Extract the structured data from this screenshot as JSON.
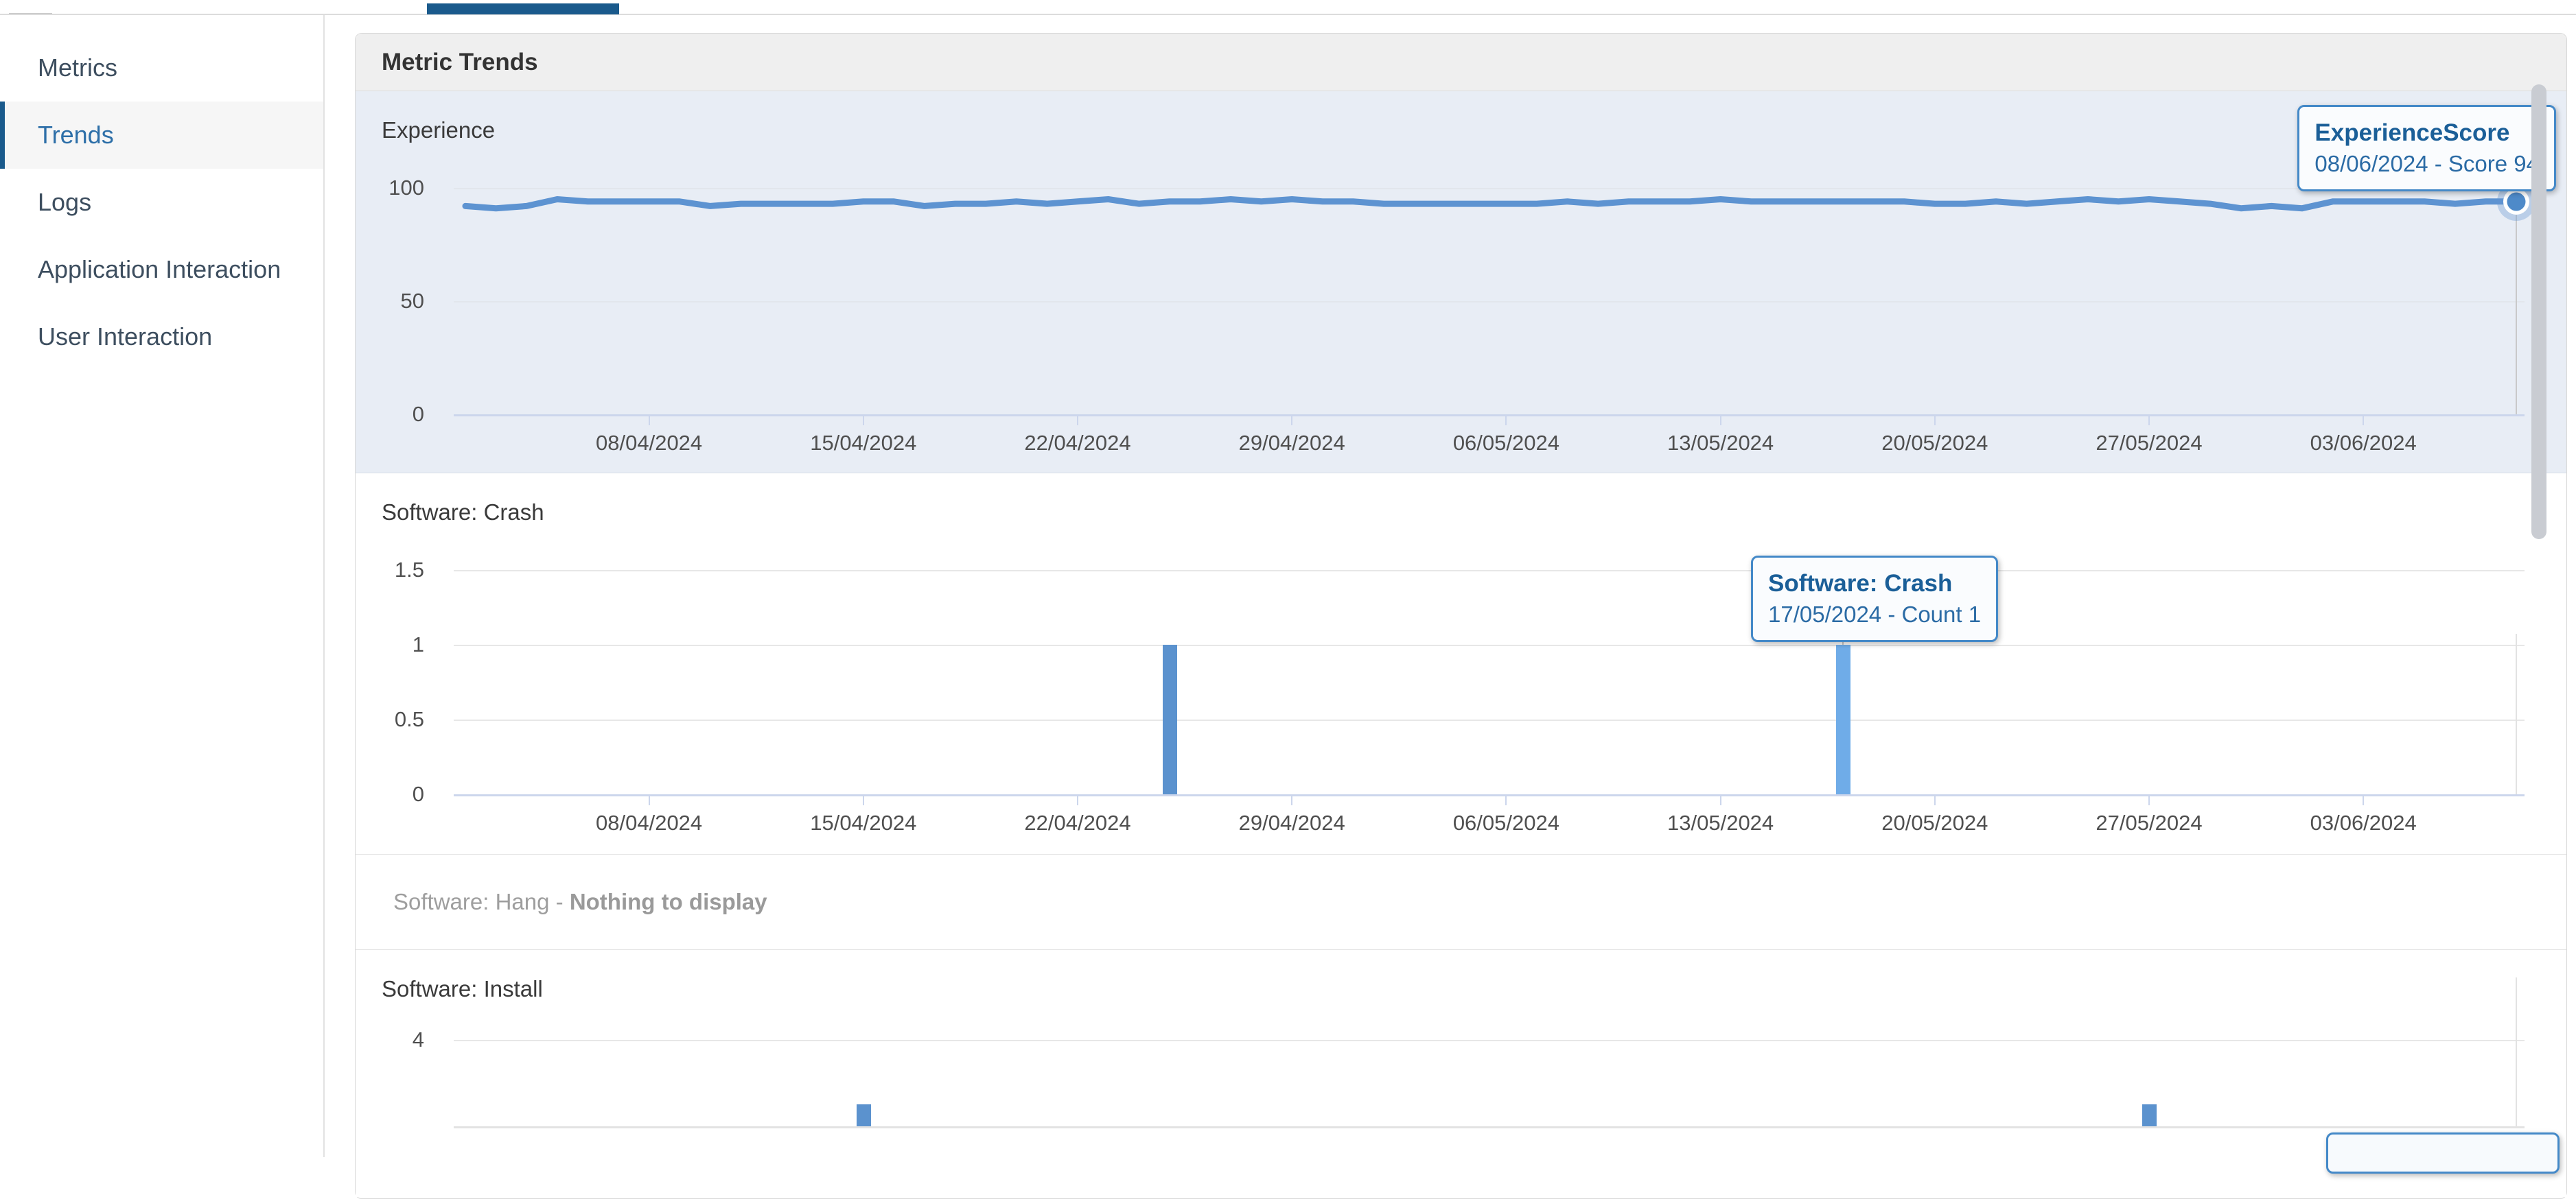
{
  "topbar": {
    "active_tab_color": "#1a5a8c"
  },
  "sidebar": {
    "items": [
      {
        "label": "Metrics",
        "active": false
      },
      {
        "label": "Trends",
        "active": true
      },
      {
        "label": "Logs",
        "active": false
      },
      {
        "label": "Application Interaction",
        "active": false
      },
      {
        "label": "User Interaction",
        "active": false
      }
    ]
  },
  "card": {
    "title": "Metric Trends"
  },
  "colors": {
    "accent_blue": "#1a5a8c",
    "line_blue": "#5d93d1",
    "bar_blue": "#5b92ce",
    "bar_hover_blue": "#6face8",
    "tooltip_border": "#4489c8",
    "experience_section_bg": "#e8edf5"
  },
  "chart_data": [
    {
      "id": "experience",
      "type": "line",
      "title": "Experience",
      "ylabel": "",
      "ylim": [
        0,
        100
      ],
      "yticks": [
        0,
        50,
        100
      ],
      "grid": true,
      "legend_position": "none",
      "x_start_date": "02/04/2024",
      "x_end_date": "08/06/2024",
      "x_tick_labels": [
        "08/04/2024",
        "15/04/2024",
        "22/04/2024",
        "29/04/2024",
        "06/05/2024",
        "13/05/2024",
        "20/05/2024",
        "27/05/2024",
        "03/06/2024"
      ],
      "x_tick_day_indices": [
        6,
        13,
        20,
        27,
        34,
        41,
        48,
        55,
        62
      ],
      "series": [
        {
          "name": "ExperienceScore",
          "values": [
            92,
            91,
            92,
            95,
            94,
            94,
            94,
            94,
            92,
            93,
            93,
            93,
            93,
            94,
            94,
            92,
            93,
            93,
            94,
            93,
            94,
            95,
            93,
            94,
            94,
            95,
            94,
            95,
            94,
            94,
            93,
            93,
            93,
            93,
            93,
            93,
            94,
            93,
            94,
            94,
            94,
            95,
            94,
            94,
            94,
            94,
            94,
            94,
            93,
            93,
            94,
            93,
            94,
            95,
            94,
            95,
            94,
            93,
            91,
            92,
            91,
            94,
            94,
            94,
            94,
            93,
            94,
            94
          ]
        }
      ],
      "hover": {
        "day_index": 67,
        "date": "08/06/2024",
        "value": 94,
        "tooltip_title": "ExperienceScore",
        "tooltip_text": "08/06/2024 - Score 94"
      }
    },
    {
      "id": "software-crash",
      "type": "bar",
      "title": "Software: Crash",
      "ylim": [
        0,
        1.5
      ],
      "yticks": [
        0,
        0.5,
        1,
        1.5
      ],
      "grid": true,
      "x_tick_labels": [
        "08/04/2024",
        "15/04/2024",
        "22/04/2024",
        "29/04/2024",
        "06/05/2024",
        "13/05/2024",
        "20/05/2024",
        "27/05/2024",
        "03/06/2024"
      ],
      "x_tick_day_indices": [
        6,
        13,
        20,
        27,
        34,
        41,
        48,
        55,
        62
      ],
      "bars": [
        {
          "date": "25/04/2024",
          "count": 1,
          "day_index": 23,
          "hovered": false
        },
        {
          "date": "17/05/2024",
          "count": 1,
          "day_index": 45,
          "hovered": true
        }
      ],
      "linked_crosshair_day_index": 67,
      "hover": {
        "day_index": 45,
        "date": "17/05/2024",
        "value": 1,
        "tooltip_title": "Software: Crash",
        "tooltip_text": "17/05/2024 - Count 1"
      }
    },
    {
      "id": "software-hang",
      "type": "empty",
      "title": "Software: Hang",
      "separator": "-",
      "empty_text": "Nothing to display"
    },
    {
      "id": "software-install",
      "type": "bar",
      "title": "Software: Install",
      "yticks": [
        4
      ],
      "grid": true,
      "clipped_by_viewport": true,
      "bars": [
        {
          "date": "15/04/2024",
          "count": 1,
          "day_index": 13,
          "hovered": false
        },
        {
          "date": "27/05/2024",
          "count": 1,
          "day_index": 55,
          "hovered": false
        }
      ],
      "linked_crosshair_day_index": 67,
      "partial_tooltip_visible": true
    }
  ]
}
